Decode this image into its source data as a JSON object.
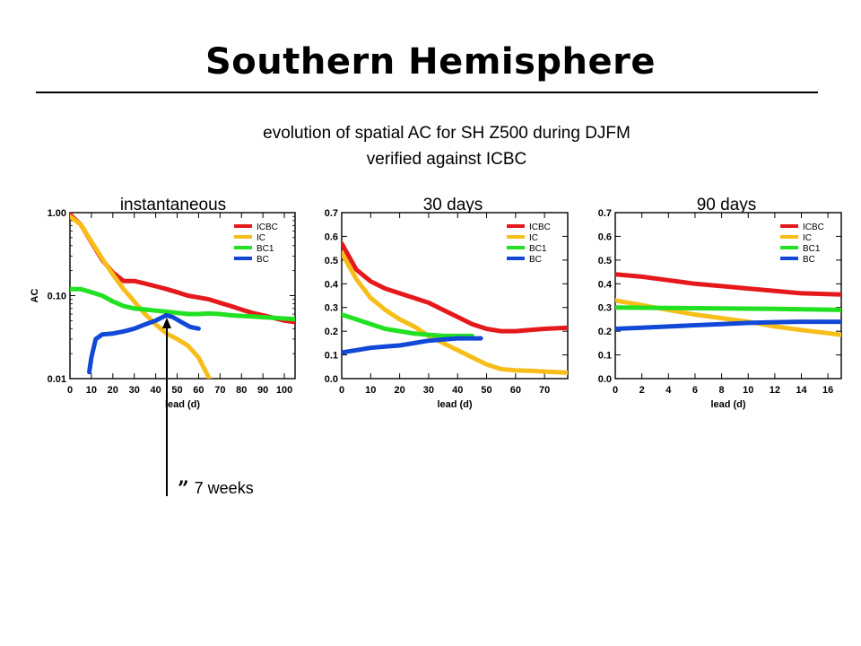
{
  "slide": {
    "title": "Southern Hemisphere",
    "subtitle_line1": "evolution of spatial AC for SH Z500 during DJFM",
    "subtitle_line2": "verified against ICBC",
    "annotation": "7 weeks",
    "annotation_mark": "”"
  },
  "colors": {
    "ICBC": "#e5191b",
    "IC": "#f7be1a",
    "BC1": "#22e022",
    "BC": "#1248d6",
    "thin_blue": "#6e8fd6"
  },
  "chart_data": [
    {
      "type": "line",
      "panel_label": "instantaneous",
      "xlabel": "lead (d)",
      "ylabel": "AC",
      "yscale": "log",
      "xlim": [
        0,
        105
      ],
      "ylim": [
        0.01,
        1.0
      ],
      "xticks": [
        0,
        10,
        20,
        30,
        40,
        50,
        60,
        70,
        80,
        90,
        100
      ],
      "yticks": [
        0.01,
        0.1,
        1.0
      ],
      "ytick_labels": [
        "0.01",
        "0.10",
        "1.00"
      ],
      "legend": [
        "ICBC",
        "IC",
        "BC1",
        "BC"
      ],
      "legend_position": "top-right",
      "series": [
        {
          "name": "ICBC",
          "x": [
            0,
            5,
            10,
            15,
            20,
            25,
            30,
            35,
            40,
            45,
            50,
            55,
            60,
            65,
            70,
            75,
            80,
            85,
            90,
            95,
            100,
            105
          ],
          "y": [
            0.95,
            0.72,
            0.44,
            0.27,
            0.19,
            0.15,
            0.15,
            0.14,
            0.13,
            0.12,
            0.11,
            0.1,
            0.095,
            0.09,
            0.082,
            0.075,
            0.068,
            0.062,
            0.058,
            0.054,
            0.05,
            0.048
          ]
        },
        {
          "name": "IC",
          "x": [
            0,
            5,
            10,
            15,
            20,
            25,
            30,
            35,
            40,
            45,
            50,
            55,
            60,
            65
          ],
          "y": [
            0.9,
            0.72,
            0.45,
            0.28,
            0.18,
            0.12,
            0.085,
            0.06,
            0.045,
            0.035,
            0.03,
            0.025,
            0.018,
            0.01
          ]
        },
        {
          "name": "BC1",
          "x": [
            0,
            5,
            10,
            15,
            20,
            25,
            30,
            35,
            40,
            45,
            50,
            55,
            60,
            65,
            70,
            75,
            80,
            85,
            90,
            95,
            100,
            105
          ],
          "y": [
            0.12,
            0.12,
            0.11,
            0.1,
            0.085,
            0.075,
            0.07,
            0.068,
            0.066,
            0.064,
            0.062,
            0.06,
            0.06,
            0.061,
            0.06,
            0.058,
            0.057,
            0.056,
            0.055,
            0.054,
            0.053,
            0.052
          ]
        },
        {
          "name": "BC",
          "x": [
            9,
            10,
            12,
            15,
            20,
            25,
            30,
            35,
            40,
            45,
            48,
            52,
            56,
            60
          ],
          "y": [
            0.012,
            0.018,
            0.03,
            0.034,
            0.035,
            0.037,
            0.04,
            0.045,
            0.05,
            0.058,
            0.055,
            0.048,
            0.042,
            0.04
          ]
        }
      ]
    },
    {
      "type": "line",
      "panel_label": "30 days",
      "xlabel": "lead (d)",
      "ylabel": "",
      "xlim": [
        0,
        78
      ],
      "ylim": [
        0.0,
        0.7
      ],
      "xticks": [
        0,
        10,
        20,
        30,
        40,
        50,
        60,
        70
      ],
      "yticks": [
        0.0,
        0.1,
        0.2,
        0.3,
        0.4,
        0.5,
        0.6,
        0.7
      ],
      "legend": [
        "ICBC",
        "IC",
        "BC1",
        "BC"
      ],
      "legend_position": "top-right",
      "series": [
        {
          "name": "ICBC",
          "x": [
            0,
            5,
            10,
            15,
            20,
            25,
            30,
            35,
            40,
            45,
            50,
            55,
            60,
            65,
            70,
            78
          ],
          "y": [
            0.57,
            0.46,
            0.41,
            0.38,
            0.36,
            0.34,
            0.32,
            0.29,
            0.26,
            0.23,
            0.21,
            0.2,
            0.2,
            0.205,
            0.21,
            0.215
          ]
        },
        {
          "name": "IC",
          "x": [
            0,
            5,
            10,
            15,
            20,
            25,
            30,
            35,
            40,
            45,
            50,
            55,
            60,
            65,
            70,
            78
          ],
          "y": [
            0.53,
            0.42,
            0.34,
            0.29,
            0.25,
            0.22,
            0.18,
            0.15,
            0.12,
            0.09,
            0.06,
            0.04,
            0.035,
            0.033,
            0.03,
            0.025
          ]
        },
        {
          "name": "BC1",
          "x": [
            0,
            5,
            10,
            15,
            20,
            25,
            30,
            35,
            40,
            45
          ],
          "y": [
            0.27,
            0.25,
            0.23,
            0.21,
            0.2,
            0.19,
            0.185,
            0.18,
            0.18,
            0.18
          ]
        },
        {
          "name": "BC",
          "x": [
            0,
            5,
            10,
            15,
            20,
            25,
            30,
            35,
            40,
            45,
            48
          ],
          "y": [
            0.11,
            0.12,
            0.13,
            0.135,
            0.14,
            0.15,
            0.16,
            0.165,
            0.17,
            0.17,
            0.17
          ]
        }
      ]
    },
    {
      "type": "line",
      "panel_label": "90 days",
      "xlabel": "lead (d)",
      "ylabel": "",
      "xlim": [
        0,
        17
      ],
      "ylim": [
        0.0,
        0.7
      ],
      "xticks": [
        0,
        2,
        4,
        6,
        8,
        10,
        12,
        14,
        16
      ],
      "yticks": [
        0.0,
        0.1,
        0.2,
        0.3,
        0.4,
        0.5,
        0.6,
        0.7
      ],
      "legend": [
        "ICBC",
        "IC",
        "BC1",
        "BC"
      ],
      "legend_position": "top-right",
      "series": [
        {
          "name": "ICBC",
          "x": [
            0,
            2,
            4,
            6,
            8,
            10,
            12,
            14,
            17
          ],
          "y": [
            0.44,
            0.43,
            0.415,
            0.4,
            0.39,
            0.38,
            0.37,
            0.36,
            0.355
          ]
        },
        {
          "name": "IC",
          "x": [
            0,
            2,
            4,
            6,
            8,
            10,
            12,
            14,
            17
          ],
          "y": [
            0.33,
            0.31,
            0.29,
            0.27,
            0.255,
            0.24,
            0.22,
            0.205,
            0.185
          ]
        },
        {
          "name": "BC1",
          "x": [
            0,
            4,
            8,
            12,
            17
          ],
          "y": [
            0.3,
            0.298,
            0.296,
            0.294,
            0.29
          ]
        },
        {
          "name": "BC",
          "x": [
            0,
            2,
            4,
            6,
            8,
            10,
            12,
            14,
            17
          ],
          "y": [
            0.21,
            0.215,
            0.22,
            0.225,
            0.23,
            0.235,
            0.238,
            0.24,
            0.24
          ]
        }
      ]
    }
  ]
}
